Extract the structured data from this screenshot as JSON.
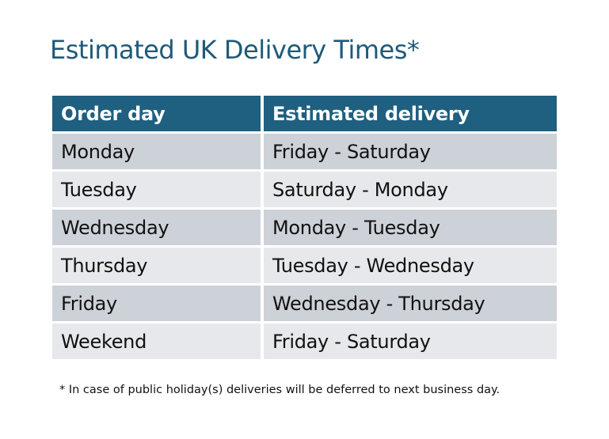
{
  "title": "Estimated UK Delivery Times*",
  "table": {
    "headers": [
      "Order day",
      "Estimated delivery"
    ],
    "rows": [
      [
        "Monday",
        "Friday - Saturday"
      ],
      [
        "Tuesday",
        "Saturday - Monday"
      ],
      [
        "Wednesday",
        "Monday - Tuesday"
      ],
      [
        "Thursday",
        "Tuesday - Wednesday"
      ],
      [
        "Friday",
        "Wednesday - Thursday"
      ],
      [
        "Weekend",
        "Friday - Saturday"
      ]
    ]
  },
  "footnote": "* In case of public holiday(s) deliveries will be deferred to next business day.",
  "colors": {
    "title": "#1f5a78",
    "header": "#1f5f80",
    "row_dark": "#cdd1d8",
    "row_light": "#e6e8eb"
  }
}
